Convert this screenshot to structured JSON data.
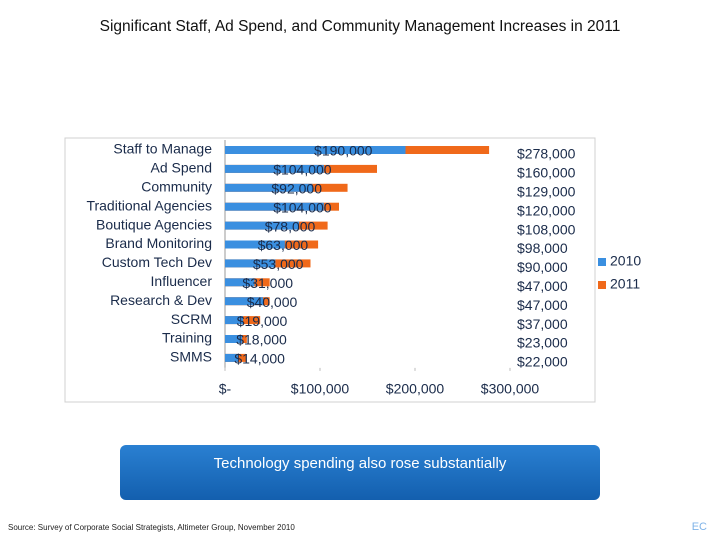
{
  "title": "Significant Staff, Ad Spend, and Community Management Increases in 2011",
  "chart_data": {
    "type": "bar",
    "orientation": "horizontal",
    "overlap": true,
    "categories": [
      "Staff to Manage",
      "Ad Spend",
      "Community",
      "Traditional Agencies",
      "Boutique Agencies",
      "Brand Monitoring",
      "Custom Tech Dev",
      "Influencer",
      "Research & Dev",
      "SCRM",
      "Training",
      "SMMS"
    ],
    "series": [
      {
        "name": "2010",
        "color": "#3a8fe0",
        "values": [
          190000,
          104000,
          92000,
          104000,
          78000,
          63000,
          53000,
          31000,
          40000,
          19000,
          18000,
          14000
        ],
        "value_labels": [
          "$190,000",
          "$104,000",
          "$92,000",
          "$104,000",
          "$78,000",
          "$63,000",
          "$53,000",
          "$31,000",
          "$40,000",
          "$19,000",
          "$18,000",
          "$14,000"
        ]
      },
      {
        "name": "2011",
        "color": "#f0691a",
        "values": [
          278000,
          160000,
          129000,
          120000,
          108000,
          98000,
          90000,
          47000,
          47000,
          37000,
          23000,
          22000
        ],
        "value_labels": [
          "$278,000",
          "$160,000",
          "$129,000",
          "$120,000",
          "$108,000",
          "$98,000",
          "$90,000",
          "$47,000",
          "$47,000",
          "$37,000",
          "$23,000",
          "$22,000"
        ]
      }
    ],
    "xlim": [
      0,
      300000
    ],
    "xticks": [
      {
        "value": 0,
        "label": "$-"
      },
      {
        "value": 100000,
        "label": "$100,000"
      },
      {
        "value": 200000,
        "label": "$200,000"
      },
      {
        "value": 300000,
        "label": "$300,000"
      }
    ],
    "legend": "right"
  },
  "callout": "Technology spending also rose substantially",
  "source": "Source: Survey of Corporate Social Strategists, Altimeter Group, November 2010",
  "footer_mark": "EC"
}
